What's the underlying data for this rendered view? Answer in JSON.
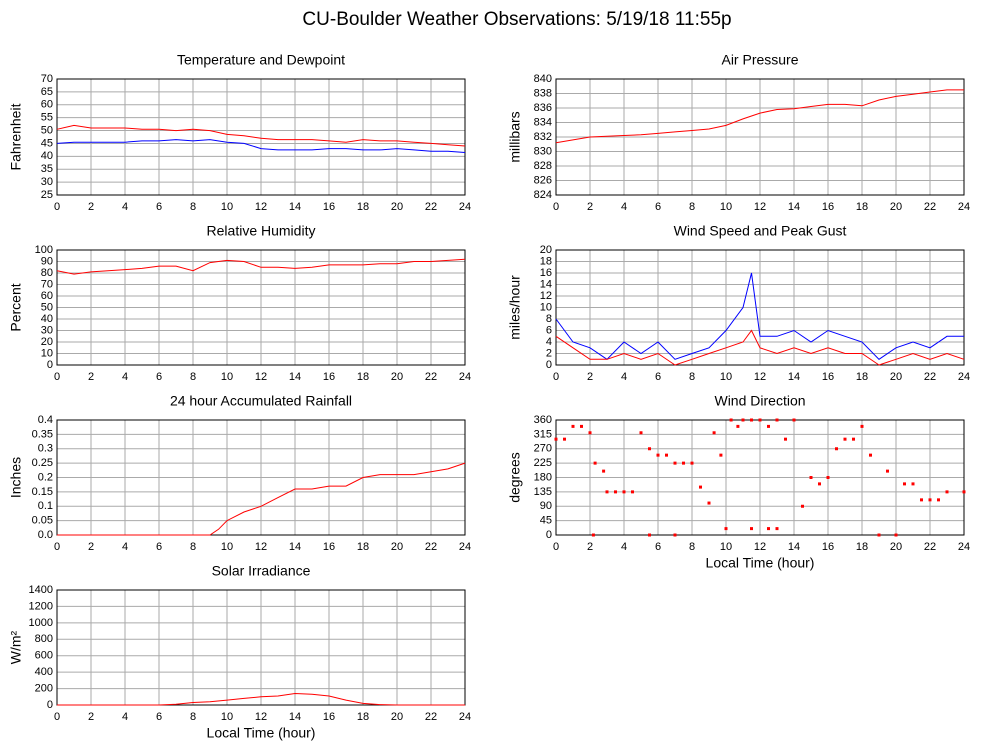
{
  "title": "CU-Boulder Weather Observations: 5/19/18 11:55p",
  "chart_data": [
    {
      "type": "line",
      "title": "Temperature and Dewpoint",
      "ylabel": "Fahrenheit",
      "x": [
        0,
        1,
        2,
        3,
        4,
        5,
        6,
        7,
        8,
        9,
        10,
        11,
        12,
        13,
        14,
        15,
        16,
        17,
        18,
        19,
        20,
        21,
        22,
        23,
        24
      ],
      "series": [
        {
          "name": "Temperature",
          "color": "#ff0000",
          "values": [
            50.5,
            52,
            51,
            51,
            51,
            50.5,
            50.5,
            50,
            50.5,
            50,
            48.5,
            48,
            47,
            46.5,
            46.5,
            46.5,
            46,
            45.5,
            46.5,
            46,
            46,
            45.5,
            45,
            44.5,
            44
          ]
        },
        {
          "name": "Dewpoint",
          "color": "#0000ff",
          "values": [
            45,
            45.5,
            45.5,
            45.5,
            45.5,
            46,
            46,
            46.5,
            46,
            46.5,
            45.5,
            45,
            43,
            42.5,
            42.5,
            42.5,
            43,
            43,
            42.5,
            42.5,
            43,
            42.5,
            42,
            42,
            41.5
          ]
        }
      ],
      "xlim": [
        0,
        24
      ],
      "xticks": [
        0,
        2,
        4,
        6,
        8,
        10,
        12,
        14,
        16,
        18,
        20,
        22,
        24
      ],
      "ylim": [
        25,
        70
      ],
      "yticks": [
        25,
        30,
        35,
        40,
        45,
        50,
        55,
        60,
        65,
        70
      ],
      "grid": true
    },
    {
      "type": "line",
      "title": "Air Pressure",
      "ylabel": "millibars",
      "x": [
        0,
        1,
        2,
        3,
        4,
        5,
        6,
        7,
        8,
        9,
        10,
        11,
        12,
        13,
        14,
        15,
        16,
        17,
        18,
        19,
        20,
        21,
        22,
        23,
        24
      ],
      "series": [
        {
          "name": "Pressure",
          "color": "#ff0000",
          "values": [
            831.2,
            831.6,
            832,
            832.1,
            832.2,
            832.3,
            832.5,
            832.7,
            832.9,
            833.1,
            833.6,
            834.5,
            835.3,
            835.8,
            835.9,
            836.2,
            836.5,
            836.5,
            836.3,
            837.1,
            837.6,
            837.9,
            838.2,
            838.5,
            838.5
          ]
        }
      ],
      "xlim": [
        0,
        24
      ],
      "xticks": [
        0,
        2,
        4,
        6,
        8,
        10,
        12,
        14,
        16,
        18,
        20,
        22,
        24
      ],
      "ylim": [
        824,
        840
      ],
      "yticks": [
        824,
        826,
        828,
        830,
        832,
        834,
        836,
        838,
        840
      ],
      "grid": true
    },
    {
      "type": "line",
      "title": "Relative Humidity",
      "ylabel": "Percent",
      "x": [
        0,
        1,
        2,
        3,
        4,
        5,
        6,
        7,
        8,
        9,
        10,
        11,
        12,
        13,
        14,
        15,
        16,
        17,
        18,
        19,
        20,
        21,
        22,
        23,
        24
      ],
      "series": [
        {
          "name": "Humidity",
          "color": "#ff0000",
          "values": [
            82,
            79,
            81,
            82,
            83,
            84,
            86,
            86,
            82,
            89,
            91,
            90,
            85,
            85,
            84,
            85,
            87,
            87,
            87,
            88,
            88,
            90,
            90,
            91,
            92
          ]
        }
      ],
      "xlim": [
        0,
        24
      ],
      "xticks": [
        0,
        2,
        4,
        6,
        8,
        10,
        12,
        14,
        16,
        18,
        20,
        22,
        24
      ],
      "ylim": [
        0,
        100
      ],
      "yticks": [
        0,
        10,
        20,
        30,
        40,
        50,
        60,
        70,
        80,
        90,
        100
      ],
      "grid": true
    },
    {
      "type": "line",
      "title": "Wind Speed and Peak Gust",
      "ylabel": "miles/hour",
      "x": [
        0,
        1,
        2,
        3,
        4,
        5,
        6,
        7,
        8,
        9,
        10,
        11,
        11.5,
        12,
        13,
        14,
        15,
        16,
        17,
        18,
        19,
        20,
        21,
        22,
        23,
        24
      ],
      "series": [
        {
          "name": "Peak Gust",
          "color": "#0000ff",
          "values": [
            8,
            4,
            3,
            1,
            4,
            2,
            4,
            1,
            2,
            3,
            6,
            10,
            16,
            5,
            5,
            6,
            4,
            6,
            5,
            4,
            1,
            3,
            4,
            3,
            5,
            5
          ]
        },
        {
          "name": "Wind Speed",
          "color": "#ff0000",
          "values": [
            5,
            3,
            1,
            1,
            2,
            1,
            2,
            0,
            1,
            2,
            3,
            4,
            6,
            3,
            2,
            3,
            2,
            3,
            2,
            2,
            0,
            1,
            2,
            1,
            2,
            1
          ]
        }
      ],
      "xlim": [
        0,
        24
      ],
      "xticks": [
        0,
        2,
        4,
        6,
        8,
        10,
        12,
        14,
        16,
        18,
        20,
        22,
        24
      ],
      "ylim": [
        0,
        20
      ],
      "yticks": [
        0,
        2,
        4,
        6,
        8,
        10,
        12,
        14,
        16,
        18,
        20
      ],
      "grid": true
    },
    {
      "type": "line",
      "title": "24 hour Accumulated Rainfall",
      "ylabel": "Inches",
      "x": [
        0,
        9,
        9.5,
        10,
        11,
        12,
        13,
        14,
        15,
        16,
        17,
        18,
        19,
        20,
        21,
        22,
        23,
        24
      ],
      "series": [
        {
          "name": "Rainfall",
          "color": "#ff0000",
          "values": [
            0,
            0,
            0.02,
            0.05,
            0.08,
            0.1,
            0.13,
            0.16,
            0.16,
            0.17,
            0.17,
            0.2,
            0.21,
            0.21,
            0.21,
            0.22,
            0.23,
            0.25
          ]
        }
      ],
      "xlim": [
        0,
        24
      ],
      "xticks": [
        0,
        2,
        4,
        6,
        8,
        10,
        12,
        14,
        16,
        18,
        20,
        22,
        24
      ],
      "ylim": [
        0,
        0.4
      ],
      "yticks": [
        {
          "value": 0,
          "label": "0.0"
        },
        0.05,
        0.1,
        0.15,
        0.2,
        0.25,
        0.3,
        0.35,
        0.4
      ],
      "grid": true
    },
    {
      "type": "scatter",
      "title": "Wind Direction",
      "ylabel": "degrees",
      "xlabel": "Local Time (hour)",
      "x": [
        0,
        0.5,
        1,
        1.5,
        2,
        2.2,
        2.3,
        2.8,
        3,
        3.5,
        4,
        4.5,
        5,
        5.5,
        5.5,
        6,
        6.5,
        7,
        7,
        7.5,
        8,
        8.5,
        9,
        9.3,
        9.7,
        10,
        10.3,
        10.7,
        11,
        11.5,
        11.5,
        12,
        12.5,
        12.5,
        13,
        13,
        13.5,
        14,
        14.5,
        15,
        15.5,
        16,
        16.5,
        17,
        17.5,
        18,
        18.5,
        19,
        19.5,
        20,
        20.5,
        21,
        21.5,
        22,
        22.5,
        23,
        24
      ],
      "series": [
        {
          "name": "Direction",
          "color": "#ff0000",
          "values": [
            300,
            300,
            340,
            340,
            320,
            0,
            225,
            200,
            135,
            135,
            135,
            135,
            320,
            270,
            0,
            250,
            250,
            225,
            0,
            225,
            225,
            150,
            100,
            320,
            250,
            20,
            360,
            340,
            360,
            360,
            20,
            360,
            340,
            20,
            360,
            20,
            300,
            360,
            90,
            180,
            160,
            180,
            270,
            300,
            300,
            340,
            250,
            0,
            200,
            0,
            160,
            160,
            110,
            110,
            110,
            135,
            135
          ]
        }
      ],
      "xlim": [
        0,
        24
      ],
      "xticks": [
        0,
        2,
        4,
        6,
        8,
        10,
        12,
        14,
        16,
        18,
        20,
        22,
        24
      ],
      "ylim": [
        0,
        360
      ],
      "yticks": [
        0,
        45,
        90,
        135,
        180,
        225,
        270,
        315,
        360
      ],
      "grid": true
    },
    {
      "type": "line",
      "title": "Solar Irradiance",
      "ylabel": "W/m²",
      "xlabel": "Local Time (hour)",
      "x": [
        0,
        6,
        7,
        8,
        9,
        10,
        11,
        12,
        13,
        14,
        15,
        16,
        17,
        18,
        19,
        20,
        24
      ],
      "series": [
        {
          "name": "Irradiance",
          "color": "#ff0000",
          "values": [
            0,
            0,
            10,
            30,
            40,
            60,
            80,
            100,
            110,
            140,
            130,
            110,
            60,
            20,
            5,
            0,
            0
          ]
        }
      ],
      "xlim": [
        0,
        24
      ],
      "xticks": [
        0,
        2,
        4,
        6,
        8,
        10,
        12,
        14,
        16,
        18,
        20,
        22,
        24
      ],
      "ylim": [
        0,
        1400
      ],
      "yticks": [
        0,
        200,
        400,
        600,
        800,
        1000,
        1200,
        1400
      ],
      "grid": true
    }
  ]
}
